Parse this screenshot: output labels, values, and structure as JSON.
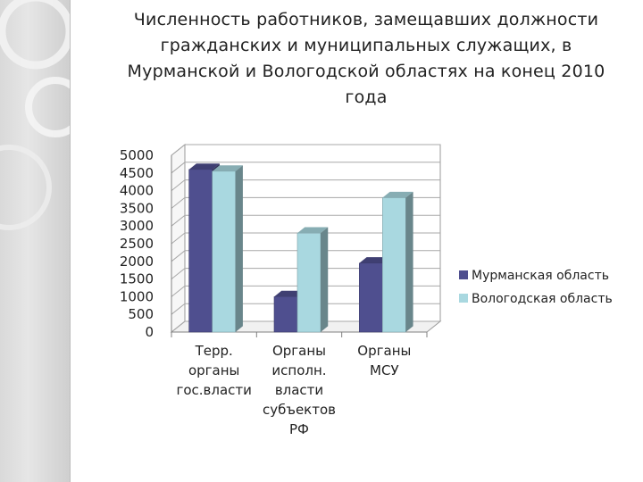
{
  "title": "Численность работников, замещавших должности\nгражданских и муниципальных служащих, в\nМурманской и Вологодской областях на конец 2010\nгода",
  "chart_data": {
    "type": "bar",
    "title": "Численность работников, замещавших должности гражданских и муниципальных служащих, в Мурманской и Вологодской областях на конец 2010 года",
    "categories": [
      [
        "Терр.",
        "органы",
        "гос.власти"
      ],
      [
        "Органы",
        "исполн.",
        "власти",
        "субъектов",
        "РФ"
      ],
      [
        "Органы",
        "МСУ"
      ]
    ],
    "series": [
      {
        "name": "Мурманская область",
        "values": [
          4600,
          1000,
          1950
        ],
        "color": "#4f4f8f"
      },
      {
        "name": "Вологодская область",
        "values": [
          4550,
          2800,
          3800
        ],
        "color": "#a9d8e0"
      }
    ],
    "yticks": [
      "0",
      "500",
      "1000",
      "1500",
      "2000",
      "2500",
      "3000",
      "3500",
      "4000",
      "4500",
      "5000"
    ],
    "ylim": [
      0,
      5000
    ],
    "grid": true,
    "style": "3d-bar",
    "legend_position": "right"
  }
}
